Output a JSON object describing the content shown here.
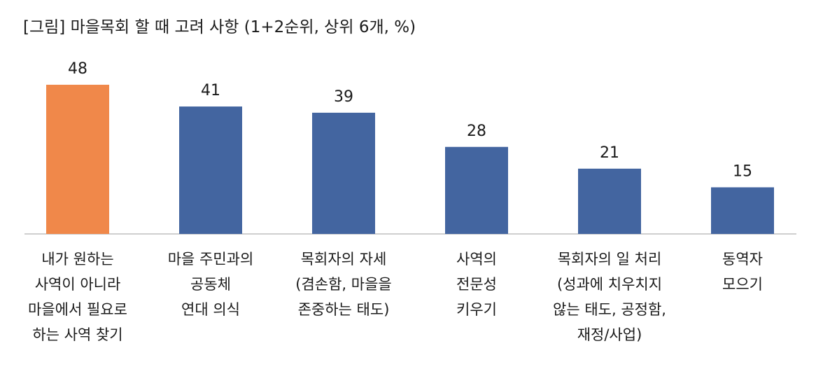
{
  "chart_data": {
    "type": "bar",
    "title": "[그림] 마을목회 할 때 고려 사항 (1+2순위, 상위 6개, %)",
    "categories": [
      "내가 원하는\n사역이 아니라\n마을에서 필요로\n하는 사역 찾기",
      "마을 주민과의\n공동체\n연대 의식",
      "목회자의 자세\n(겸손함, 마을을\n존중하는 태도)",
      "사역의\n전문성\n키우기",
      "목회자의 일 처리\n(성과에 치우치지\n않는 태도, 공정함,\n재정/사업)",
      "동역자\n모으기"
    ],
    "values": [
      48,
      41,
      39,
      28,
      21,
      15
    ],
    "colors": [
      "#f0884a",
      "#4365a0",
      "#4365a0",
      "#4365a0",
      "#4365a0",
      "#4365a0"
    ]
  }
}
